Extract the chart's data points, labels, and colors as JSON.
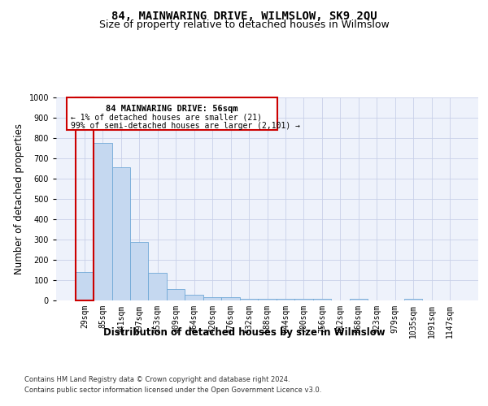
{
  "title": "84, MAINWARING DRIVE, WILMSLOW, SK9 2QU",
  "subtitle": "Size of property relative to detached houses in Wilmslow",
  "xlabel": "Distribution of detached houses by size in Wilmslow",
  "ylabel": "Number of detached properties",
  "categories": [
    "29sqm",
    "85sqm",
    "141sqm",
    "197sqm",
    "253sqm",
    "309sqm",
    "364sqm",
    "420sqm",
    "476sqm",
    "532sqm",
    "588sqm",
    "644sqm",
    "700sqm",
    "756sqm",
    "812sqm",
    "868sqm",
    "923sqm",
    "979sqm",
    "1035sqm",
    "1091sqm",
    "1147sqm"
  ],
  "values": [
    140,
    775,
    655,
    290,
    135,
    55,
    28,
    18,
    15,
    10,
    10,
    8,
    8,
    8,
    0,
    8,
    0,
    0,
    7,
    0,
    0
  ],
  "bar_color": "#c5d8f0",
  "bar_edge_color": "#6fa8d6",
  "highlight_box_color": "#cc0000",
  "highlight_bar_index": 0,
  "ylim": [
    0,
    1000
  ],
  "yticks": [
    0,
    100,
    200,
    300,
    400,
    500,
    600,
    700,
    800,
    900,
    1000
  ],
  "annotation_title": "84 MAINWARING DRIVE: 56sqm",
  "annotation_line1": "← 1% of detached houses are smaller (21)",
  "annotation_line2": "99% of semi-detached houses are larger (2,101) →",
  "background_color": "#eef2fb",
  "grid_color": "#c8d0e8",
  "title_fontsize": 10,
  "subtitle_fontsize": 9,
  "axis_label_fontsize": 8.5,
  "tick_fontsize": 7,
  "footer_line1": "Contains HM Land Registry data © Crown copyright and database right 2024.",
  "footer_line2": "Contains public sector information licensed under the Open Government Licence v3.0."
}
